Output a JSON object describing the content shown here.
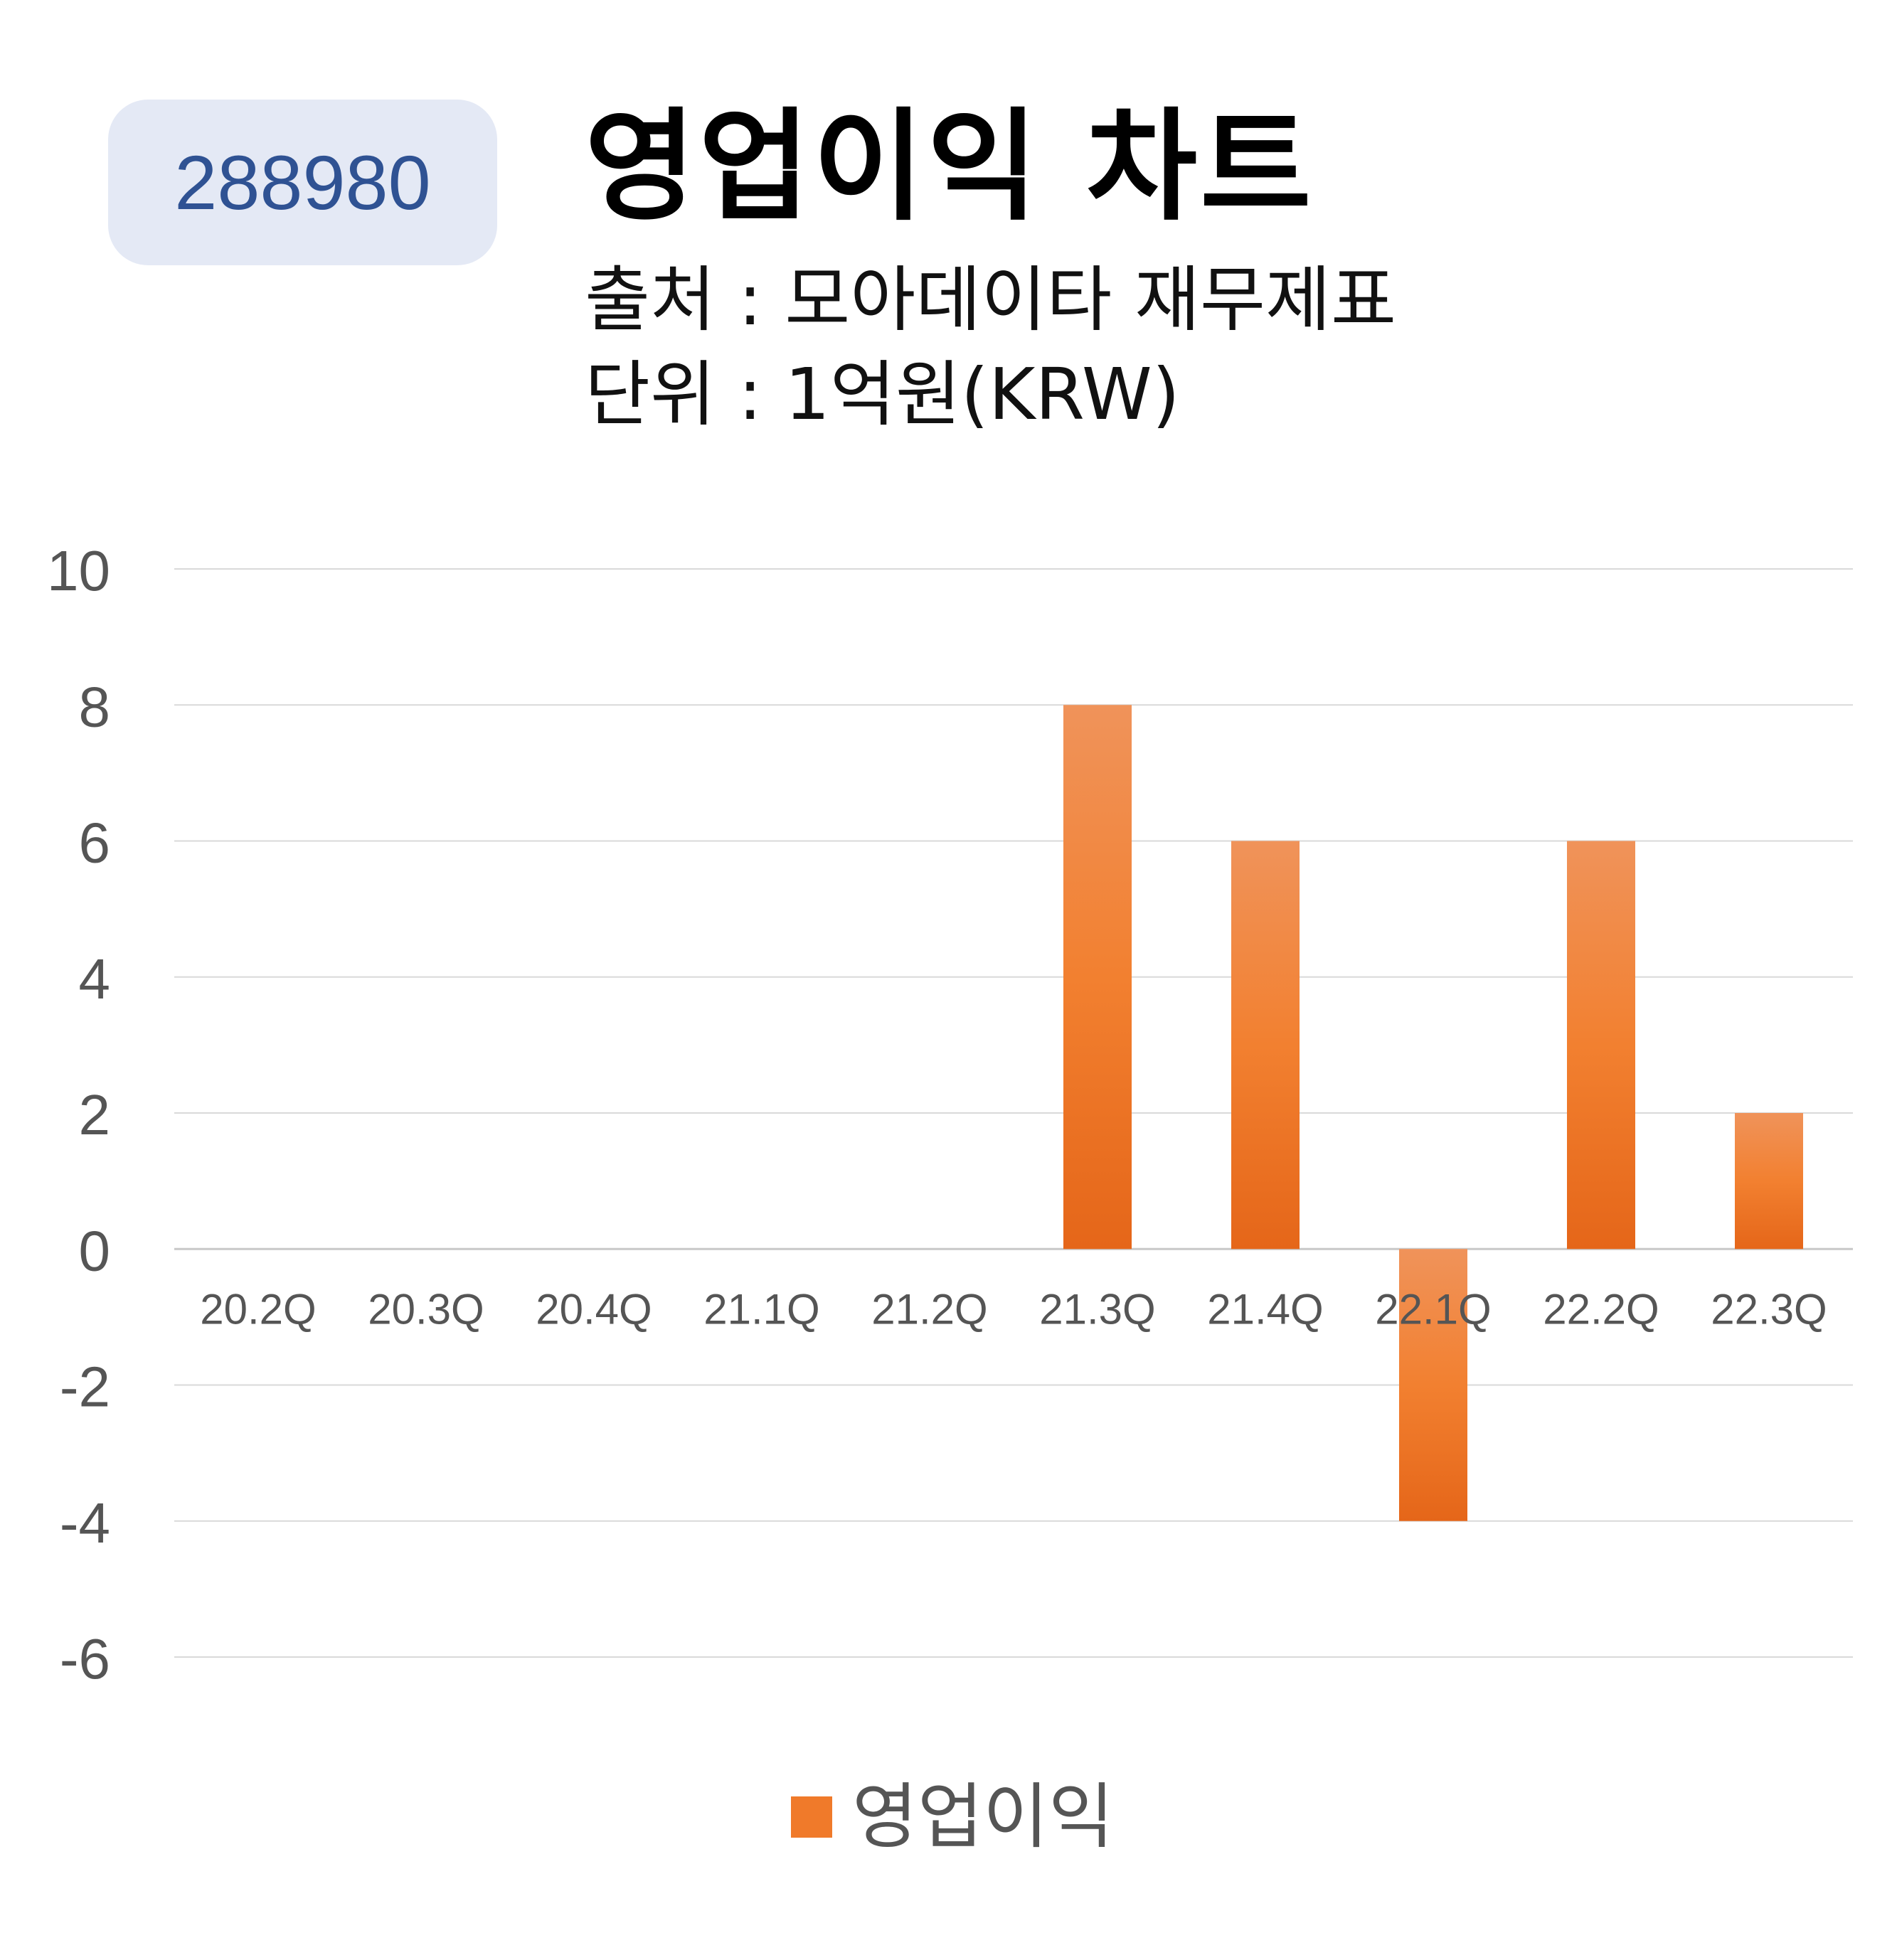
{
  "badge": "288980",
  "title": "영업이익 차트",
  "source": "출처 : 모아데이타 재무제표",
  "unit": "단위 : 1억원(KRW)",
  "colors": {
    "bar": "#f07a2a",
    "bar_light": "#f0935a",
    "bar_dark": "#e56619",
    "badge_bg": "#e4e9f5",
    "badge_text": "#2f5293"
  },
  "chart_data": {
    "type": "bar",
    "categories": [
      "20.2Q",
      "20.3Q",
      "20.4Q",
      "21.1Q",
      "21.2Q",
      "21.3Q",
      "21.4Q",
      "22.1Q",
      "22.2Q",
      "22.3Q"
    ],
    "series": [
      {
        "name": "영업이익",
        "values": [
          0,
          0,
          0,
          0,
          0,
          8,
          6,
          -4,
          6,
          2
        ]
      }
    ],
    "ylim": [
      -6,
      10
    ],
    "yticks": [
      10,
      8,
      6,
      4,
      2,
      0,
      -2,
      -4,
      -6
    ],
    "grid": true,
    "legend_position": "bottom"
  }
}
